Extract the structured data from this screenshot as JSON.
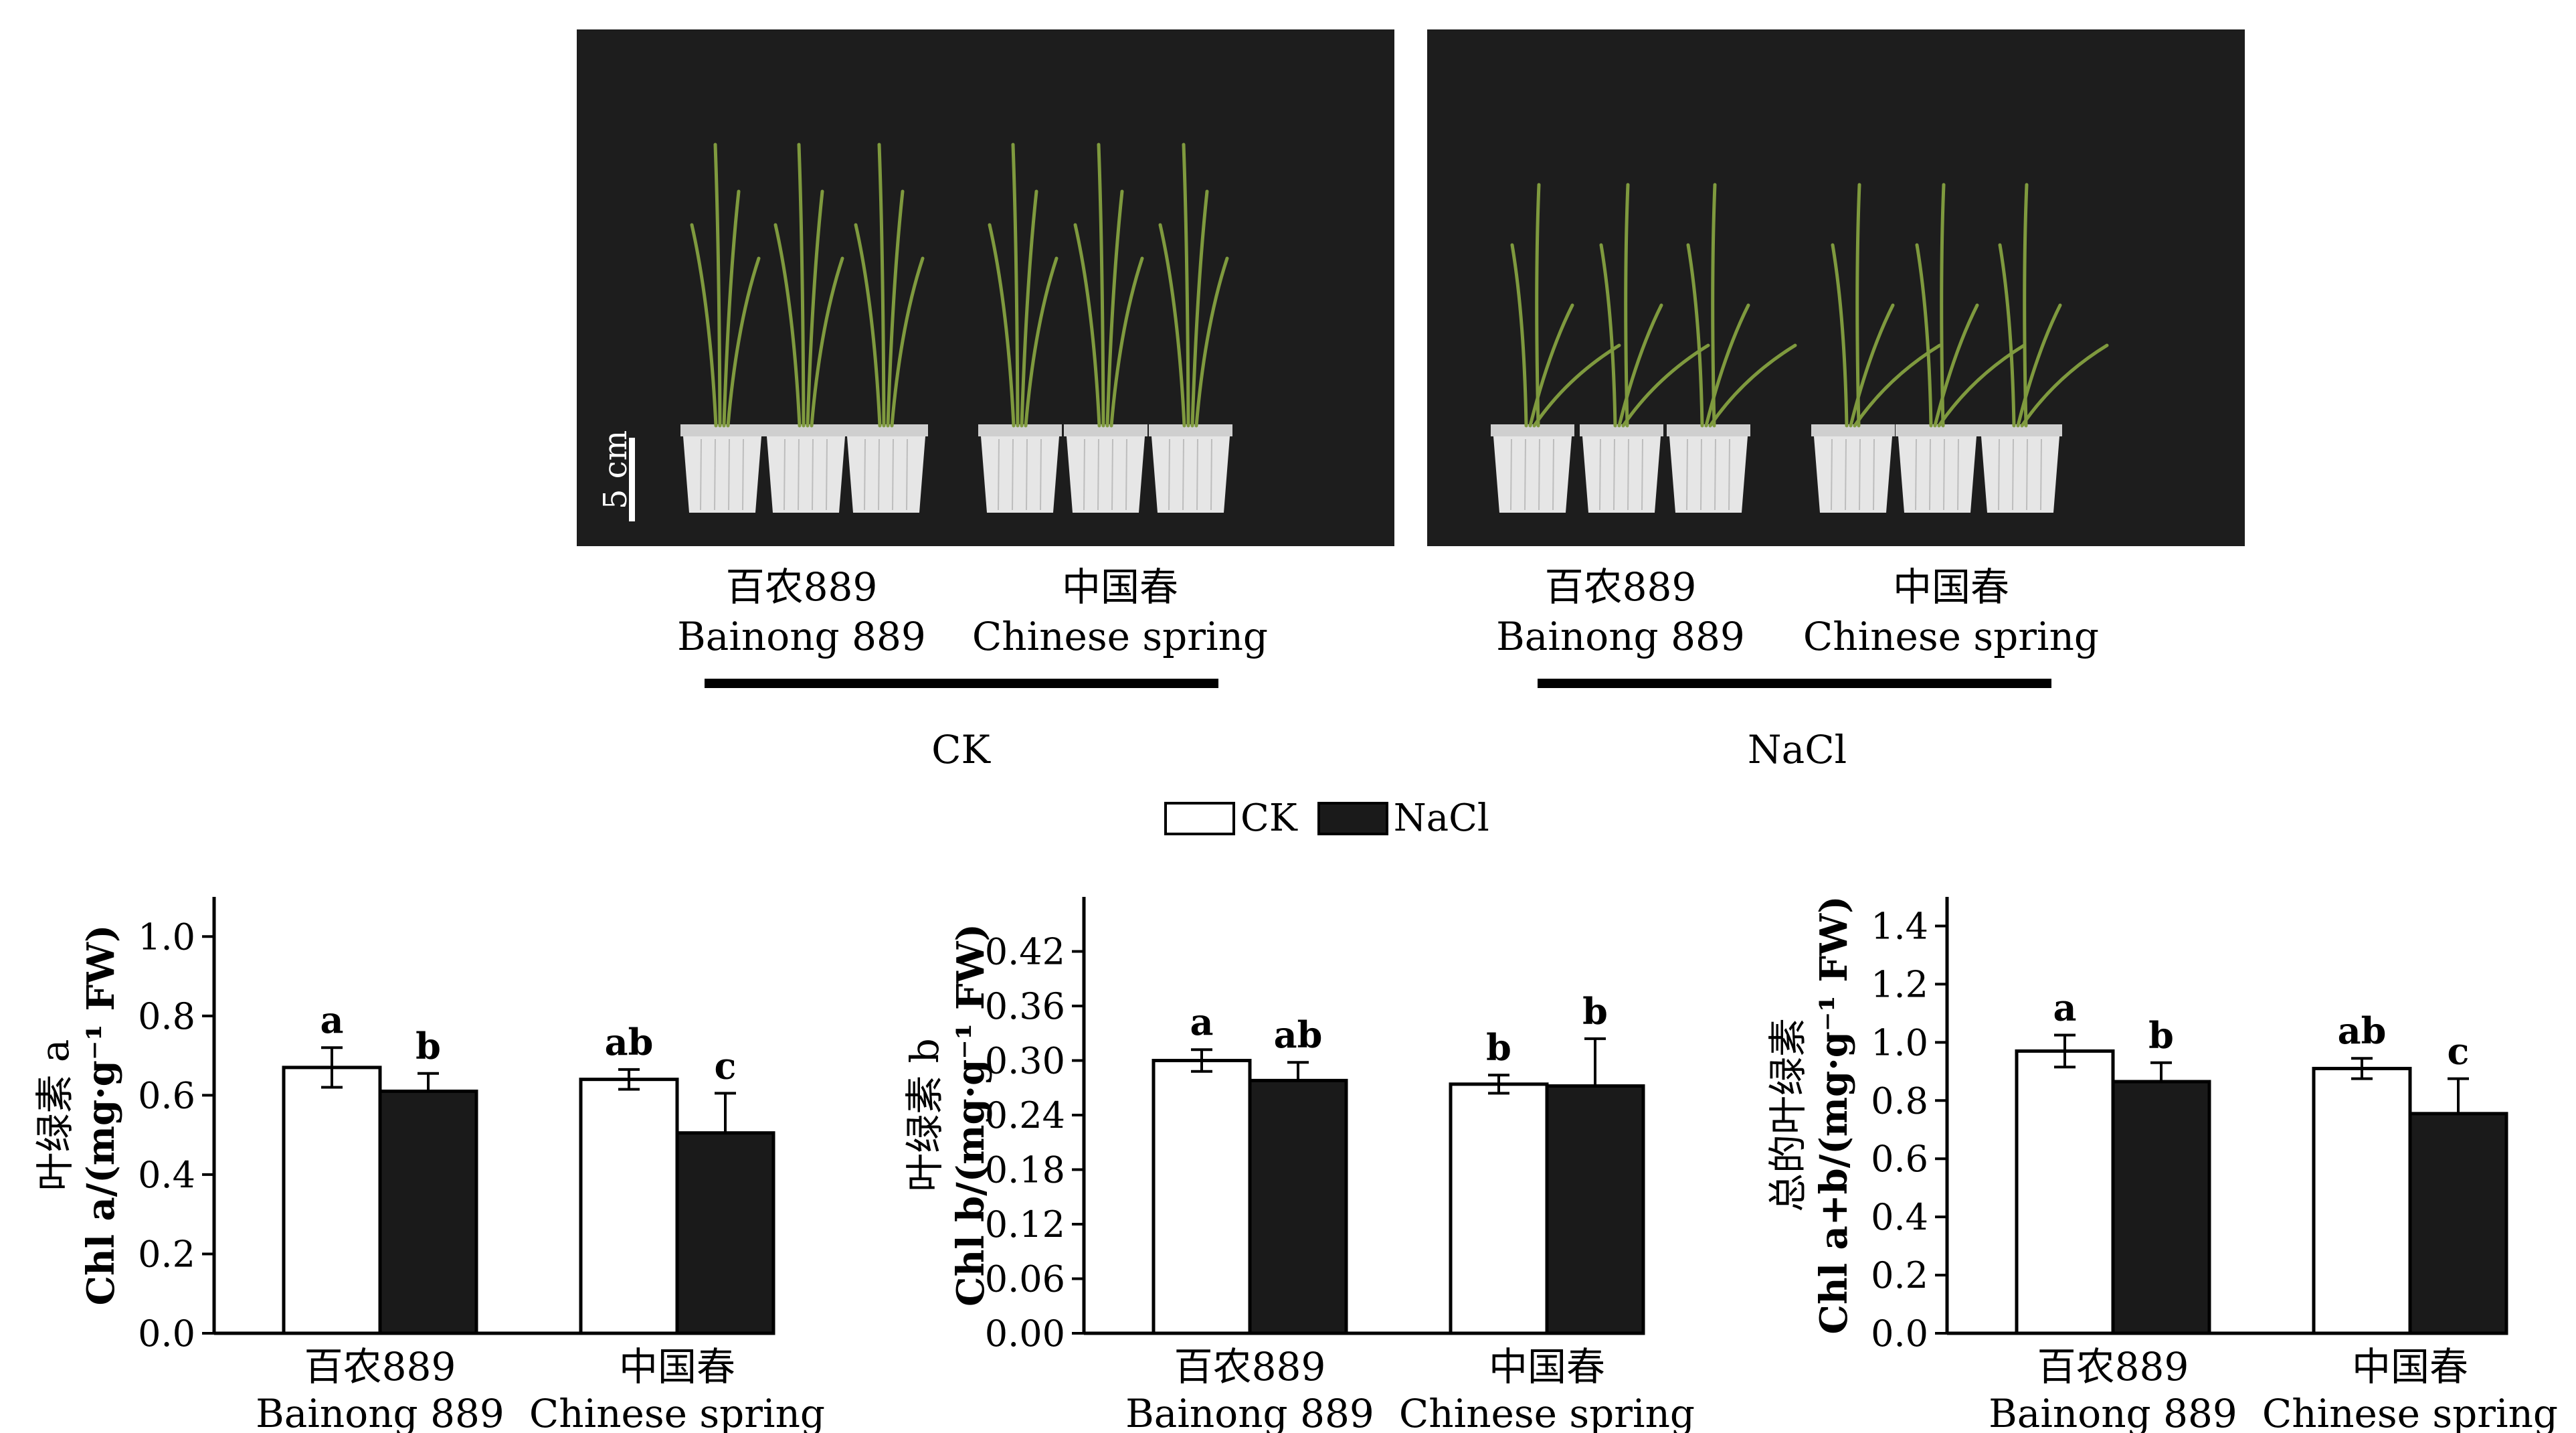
{
  "photos": [
    {
      "name": "photo-ck",
      "scale_label": "5 cm",
      "cultivars": [
        {
          "zh": "百农889",
          "en": "Bainong 889"
        },
        {
          "zh": "中国春",
          "en": "Chinese spring"
        }
      ],
      "group": "CK"
    },
    {
      "name": "photo-nacl",
      "cultivars": [
        {
          "zh": "百农889",
          "en": "Bainong 889"
        },
        {
          "zh": "中国春",
          "en": "Chinese spring"
        }
      ],
      "group": "NaCl"
    }
  ],
  "legend": [
    {
      "label": "CK",
      "color": "#ffffff"
    },
    {
      "label": "NaCl",
      "color": "#1a1a1a"
    }
  ],
  "colors": {
    "ck": "#ffffff",
    "nacl": "#1a1a1a",
    "photo_bg": "#1d1d1d",
    "pot": "#e6e6e6",
    "leaf": "#7f9a3e"
  },
  "chart_data": [
    {
      "type": "bar",
      "ylabel_zh": "叶绿素 a",
      "ylabel_en": "Chl a/(mg·g⁻¹ FW)",
      "categories_zh": [
        "百农889",
        "中国春"
      ],
      "categories_en": [
        "Bainong 889",
        "Chinese spring"
      ],
      "ylim": [
        0,
        1.1
      ],
      "yticks": [
        "0.0",
        "0.2",
        "0.4",
        "0.6",
        "0.8",
        "1.0"
      ],
      "series": [
        {
          "name": "CK",
          "values": [
            0.67,
            0.64
          ],
          "errors": [
            0.05,
            0.025
          ],
          "letters": [
            "a",
            "ab"
          ]
        },
        {
          "name": "NaCl",
          "values": [
            0.61,
            0.505
          ],
          "errors": [
            0.045,
            0.1
          ],
          "letters": [
            "b",
            "c"
          ]
        }
      ]
    },
    {
      "type": "bar",
      "ylabel_zh": "叶绿素 b",
      "ylabel_en": "Chl b/(mg·g⁻¹ FW)",
      "categories_zh": [
        "百农889",
        "中国春"
      ],
      "categories_en": [
        "Bainong 889",
        "Chinese spring"
      ],
      "ylim": [
        0,
        0.48
      ],
      "yticks": [
        "0.00",
        "0.06",
        "0.12",
        "0.18",
        "0.24",
        "0.30",
        "0.36",
        "0.42"
      ],
      "series": [
        {
          "name": "CK",
          "values": [
            0.3,
            0.274
          ],
          "errors": [
            0.012,
            0.01
          ],
          "letters": [
            "a",
            "b"
          ]
        },
        {
          "name": "NaCl",
          "values": [
            0.278,
            0.272
          ],
          "errors": [
            0.02,
            0.052
          ],
          "letters": [
            "ab",
            "b"
          ]
        }
      ]
    },
    {
      "type": "bar",
      "ylabel_zh": "总的叶绿素",
      "ylabel_en": "Chl a+b/(mg·g⁻¹ FW)",
      "categories_zh": [
        "百农889",
        "中国春"
      ],
      "categories_en": [
        "Bainong 889",
        "Chinese spring"
      ],
      "ylim": [
        0,
        1.5
      ],
      "yticks": [
        "0.0",
        "0.2",
        "0.4",
        "0.6",
        "0.8",
        "1.0",
        "1.2",
        "1.4"
      ],
      "series": [
        {
          "name": "CK",
          "values": [
            0.97,
            0.91
          ],
          "errors": [
            0.055,
            0.035
          ],
          "letters": [
            "a",
            "ab"
          ]
        },
        {
          "name": "NaCl",
          "values": [
            0.865,
            0.755
          ],
          "errors": [
            0.065,
            0.12
          ],
          "letters": [
            "b",
            "c"
          ]
        }
      ]
    }
  ]
}
